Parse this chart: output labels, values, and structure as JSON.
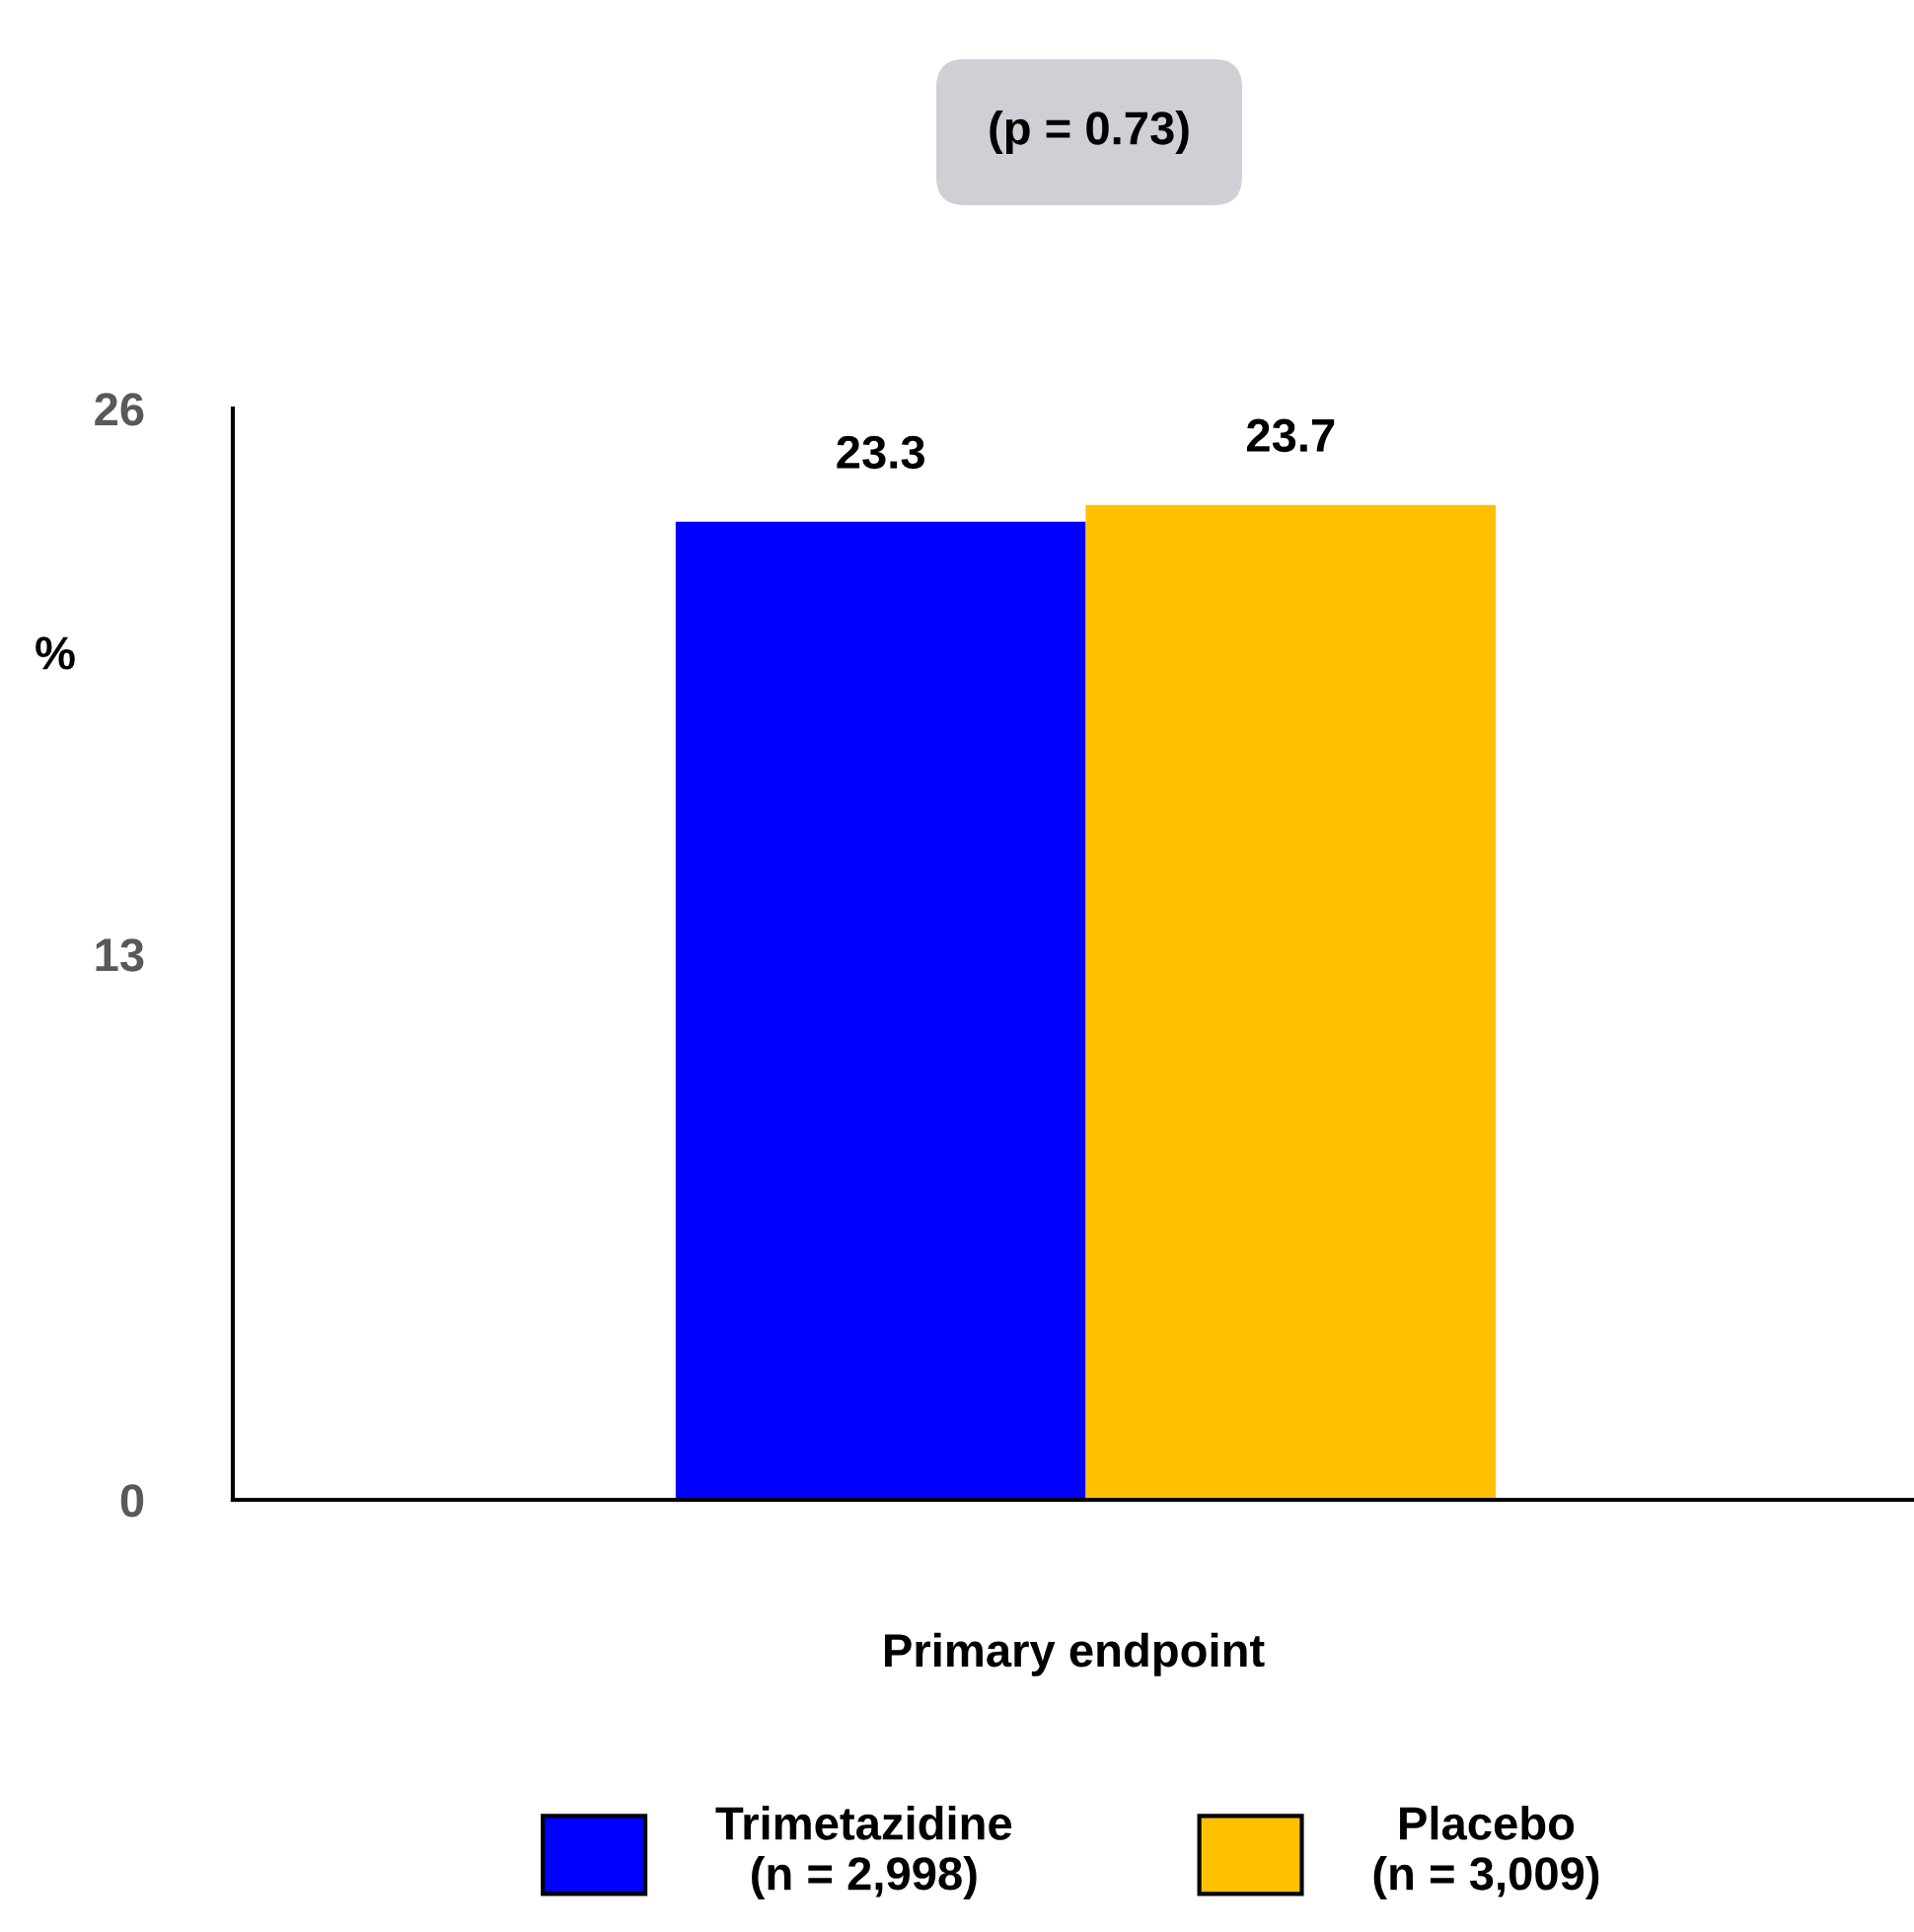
{
  "chart_data": {
    "type": "bar",
    "categories": [
      null
    ],
    "xlabel": "Primary endpoint",
    "series": [
      {
        "name": "Trimetazidine\n(n = 2,998)",
        "color": "#0000ff",
        "values": [
          23.3
        ]
      },
      {
        "name": "Placebo\n(n = 3,009)",
        "color": "#ffc000",
        "values": [
          23.7
        ]
      }
    ],
    "ylabel": "%",
    "ylim": [
      0,
      26
    ],
    "yticks": [
      0,
      13,
      26
    ],
    "data_labels": true,
    "grid": false,
    "legend": "bottom",
    "annotations": [
      "(p = 0.73)"
    ]
  }
}
